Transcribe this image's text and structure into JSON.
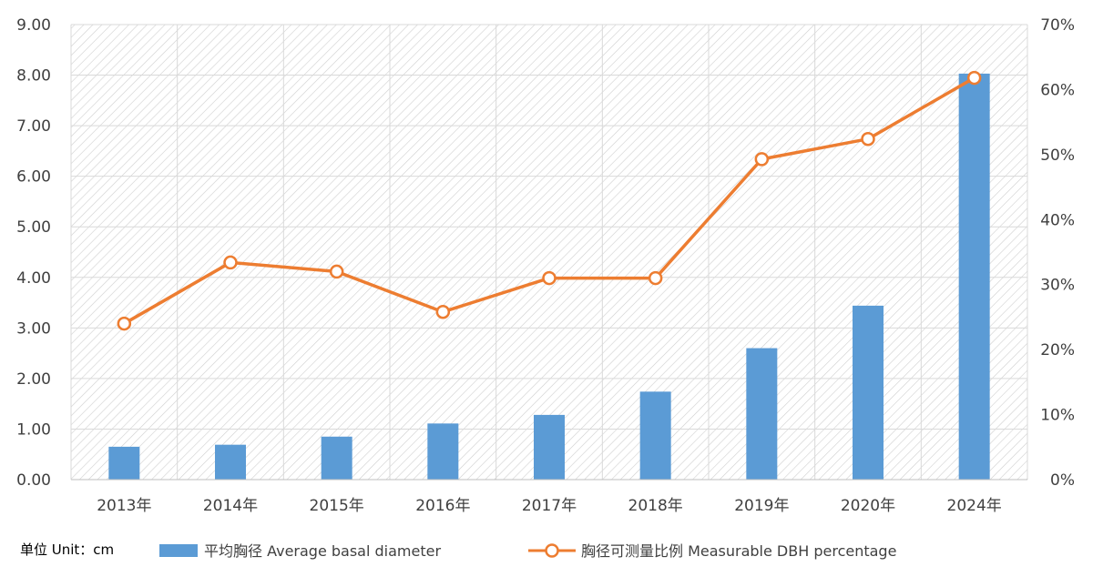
{
  "chart_data": {
    "type": "bar+line",
    "unit_label": "单位 Unit：cm",
    "categories": [
      "2013年",
      "2014年",
      "2015年",
      "2016年",
      "2017年",
      "2018年",
      "2019年",
      "2020年",
      "2024年"
    ],
    "series": [
      {
        "name": "平均胸径 Average basal diameter",
        "type": "bar",
        "axis": "left",
        "color": "#5b9bd5",
        "values": [
          0.65,
          0.69,
          0.85,
          1.11,
          1.28,
          1.74,
          2.6,
          3.44,
          8.03
        ]
      },
      {
        "name": "胸径可测量比例 Measurable DBH percentage",
        "type": "line",
        "axis": "right",
        "color": "#ed7d31",
        "values": [
          24.0,
          33.4,
          32.0,
          25.8,
          31.0,
          31.0,
          49.3,
          52.4,
          61.8
        ]
      }
    ],
    "y_left": {
      "min": 0,
      "max": 9,
      "step": 1,
      "tick_labels": [
        "0.00",
        "1.00",
        "2.00",
        "3.00",
        "4.00",
        "5.00",
        "6.00",
        "7.00",
        "8.00",
        "9.00"
      ]
    },
    "y_right": {
      "min": 0,
      "max": 70,
      "step": 10,
      "tick_labels": [
        "0%",
        "10%",
        "20%",
        "30%",
        "40%",
        "50%",
        "60%",
        "70%"
      ]
    },
    "grid": true,
    "legend_position": "bottom"
  }
}
